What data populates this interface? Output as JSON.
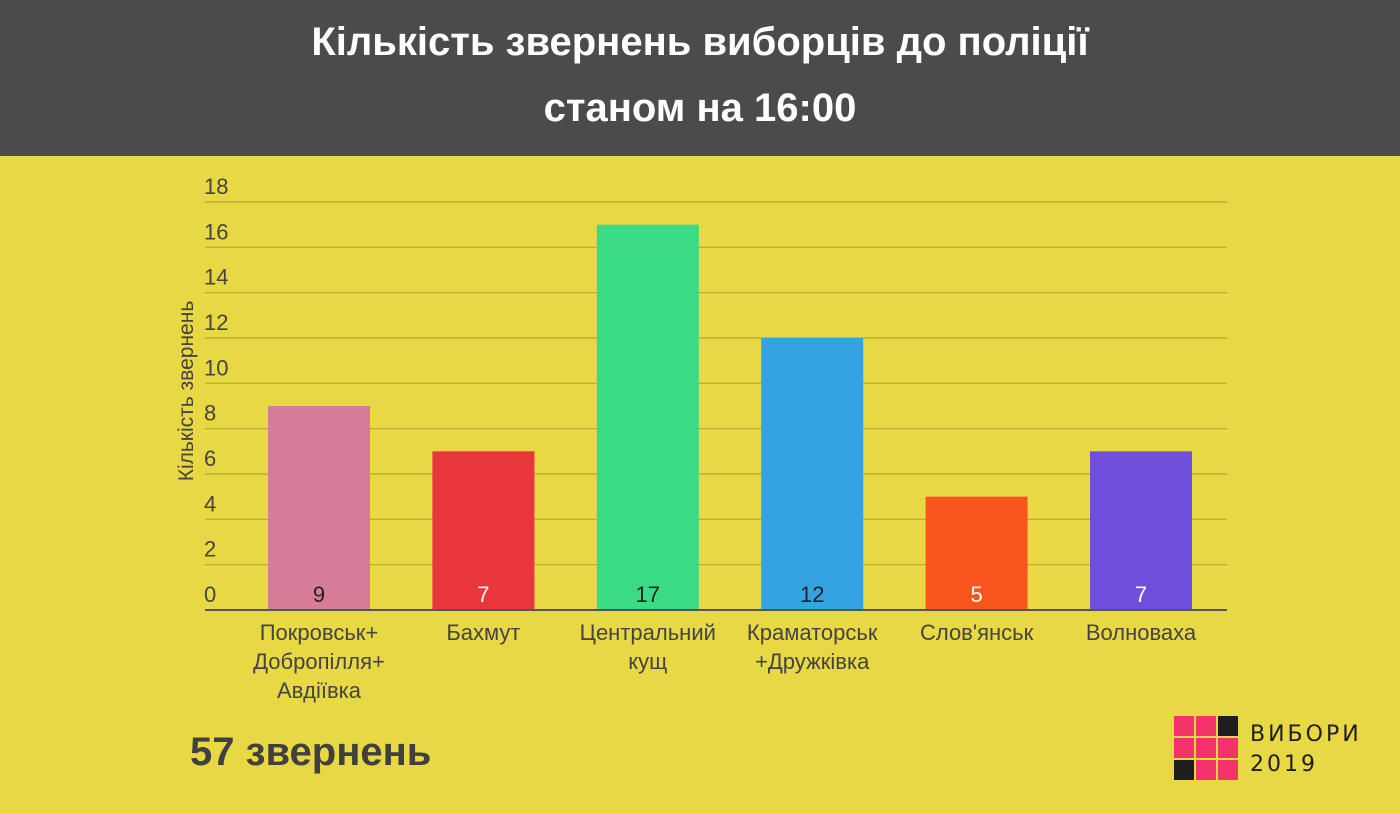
{
  "header": {
    "title_line1": "Кількість звернень виборців до поліції",
    "title_line2": "станом на 16:00"
  },
  "total_label": "57 звернень",
  "logo": {
    "line1": "ВИБОРИ",
    "line2": "2019",
    "colors": {
      "pink": "#f4336b",
      "black": "#1e1e1e"
    }
  },
  "chart_data": {
    "type": "bar",
    "title": "",
    "xlabel": "",
    "ylabel": "Кількість звернень",
    "ylim": [
      0,
      18
    ],
    "yticks": [
      0,
      2,
      4,
      6,
      8,
      10,
      12,
      14,
      16,
      18
    ],
    "grid": true,
    "categories": [
      [
        "Покровськ+",
        "Добропілля+",
        "Авдіївка"
      ],
      [
        "Бахмут"
      ],
      [
        "Центральний",
        "кущ"
      ],
      [
        "Краматорськ",
        "+Дружківка"
      ],
      [
        "Слов'янськ"
      ],
      [
        "Волноваха"
      ]
    ],
    "values": [
      9,
      7,
      17,
      12,
      5,
      7
    ],
    "data_labels": [
      "9",
      "7",
      "17",
      "12",
      "5",
      "7"
    ],
    "colors": [
      "#d67b98",
      "#e8363b",
      "#3adb84",
      "#36a3e1",
      "#f9561e",
      "#6d4fdb"
    ],
    "label_colors": [
      "#222222",
      "#ffffff",
      "#222222",
      "#222222",
      "#ffffff",
      "#ffffff"
    ]
  }
}
